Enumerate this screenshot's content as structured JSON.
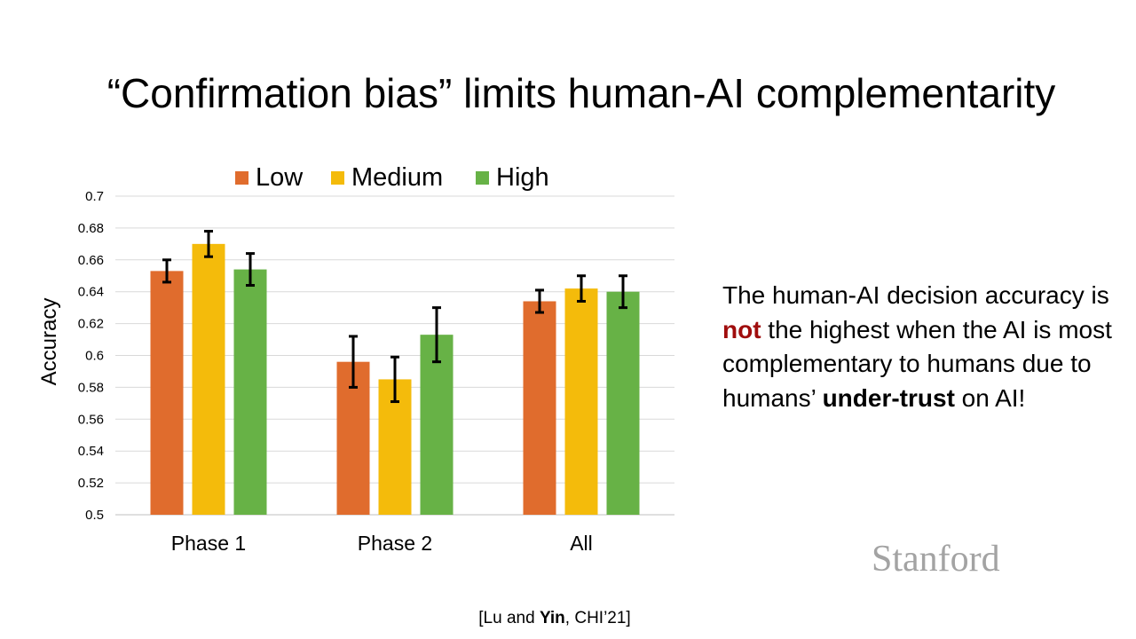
{
  "slide": {
    "title": "“Confirmation bias” limits human-AI complementarity",
    "text_segments": [
      "The human-AI decision accuracy is ",
      "not",
      " the highest when the AI is most complementary to humans due to humans’ ",
      "under-trust",
      " on AI!"
    ],
    "logo": "Stanford",
    "citation": {
      "open": "[Lu and ",
      "author_bold": "Yin",
      "rest": ", CHI’21]"
    }
  },
  "chart_data": {
    "type": "bar",
    "title": "",
    "xlabel": "",
    "ylabel": "Accuracy",
    "ylim": [
      0.5,
      0.7
    ],
    "yticks": [
      "0.5",
      "0.52",
      "0.54",
      "0.56",
      "0.58",
      "0.6",
      "0.62",
      "0.64",
      "0.66",
      "0.68",
      "0.7"
    ],
    "grid": true,
    "legend_position": "top",
    "categories": [
      "Phase 1",
      "Phase 2",
      "All"
    ],
    "series": [
      {
        "name": "Low",
        "color": "#e06c2d",
        "values": [
          0.653,
          0.596,
          0.634
        ],
        "errors": [
          0.007,
          0.016,
          0.007
        ]
      },
      {
        "name": "Medium",
        "color": "#f4bb0b",
        "values": [
          0.67,
          0.585,
          0.642
        ],
        "errors": [
          0.008,
          0.014,
          0.008
        ]
      },
      {
        "name": "High",
        "color": "#67b246",
        "values": [
          0.654,
          0.613,
          0.64
        ],
        "errors": [
          0.01,
          0.017,
          0.01
        ]
      }
    ]
  }
}
